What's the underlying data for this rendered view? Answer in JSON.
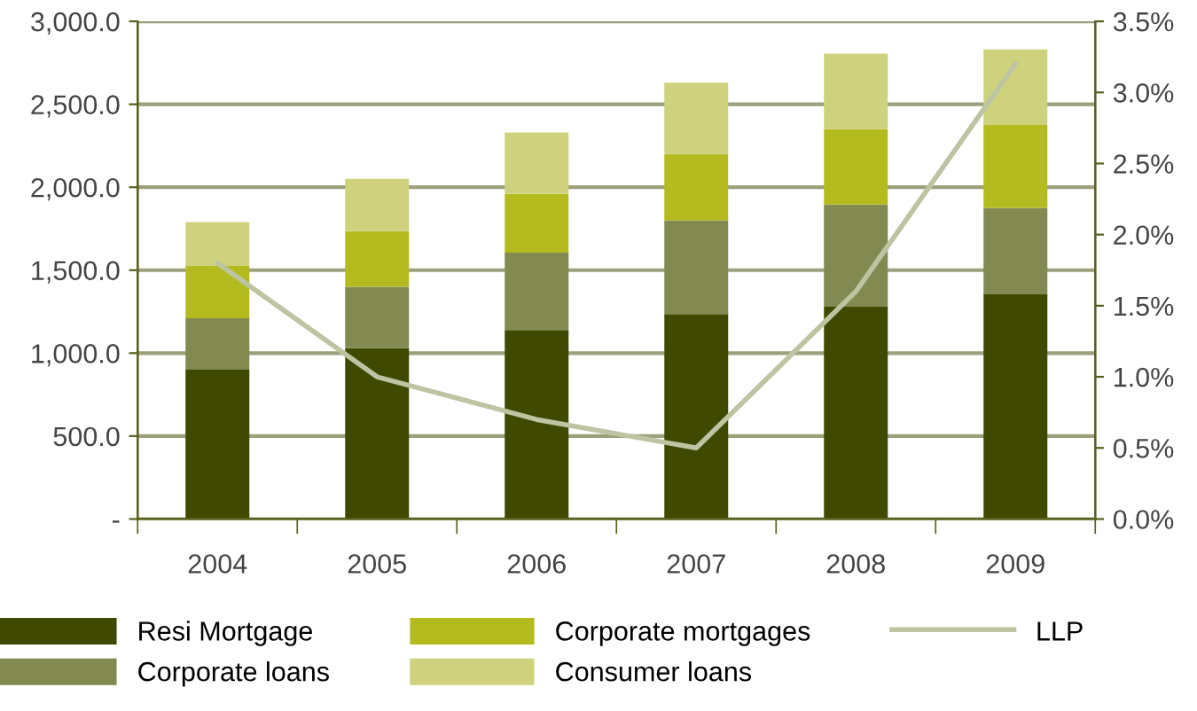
{
  "chart_data": {
    "type": "bar",
    "stacked": true,
    "categories": [
      "2004",
      "2005",
      "2006",
      "2007",
      "2008",
      "2009"
    ],
    "series": [
      {
        "name": "Resi Mortgage",
        "color": "#3f4a00",
        "values": [
          900,
          1030,
          1140,
          1235,
          1280,
          1355
        ]
      },
      {
        "name": "Corporate loans",
        "color": "#828a52",
        "values": [
          310,
          370,
          465,
          565,
          615,
          520
        ]
      },
      {
        "name": "Corporate mortgages",
        "color": "#b3bb1f",
        "values": [
          315,
          335,
          355,
          400,
          455,
          500
        ]
      },
      {
        "name": "Consumer loans",
        "color": "#cfd27d",
        "values": [
          265,
          315,
          370,
          430,
          455,
          455
        ]
      },
      {
        "name": "LLP",
        "type": "line",
        "axis": "y2",
        "color": "#bcc4a2",
        "values": [
          1.8,
          1.0,
          0.7,
          0.5,
          1.6,
          3.2
        ]
      }
    ],
    "ylim": [
      0,
      3000
    ],
    "yticks": [
      {
        "value": 0,
        "label": "-"
      },
      {
        "value": 500,
        "label": "500.0"
      },
      {
        "value": 1000,
        "label": "1,000.0"
      },
      {
        "value": 1500,
        "label": "1,500.0"
      },
      {
        "value": 2000,
        "label": "2,000.0"
      },
      {
        "value": 2500,
        "label": "2,500.0"
      },
      {
        "value": 3000,
        "label": "3,000.0"
      }
    ],
    "y2lim": [
      0,
      3.5
    ],
    "y2ticks": [
      {
        "value": 0,
        "label": "0.0%"
      },
      {
        "value": 0.5,
        "label": "0.5%"
      },
      {
        "value": 1,
        "label": "1.0%"
      },
      {
        "value": 1.5,
        "label": "1.5%"
      },
      {
        "value": 2,
        "label": "2.0%"
      },
      {
        "value": 2.5,
        "label": "2.5%"
      },
      {
        "value": 3,
        "label": "3.0%"
      },
      {
        "value": 3.5,
        "label": "3.5%"
      }
    ],
    "grid": "y",
    "legend": "bottom",
    "marker": "none"
  }
}
